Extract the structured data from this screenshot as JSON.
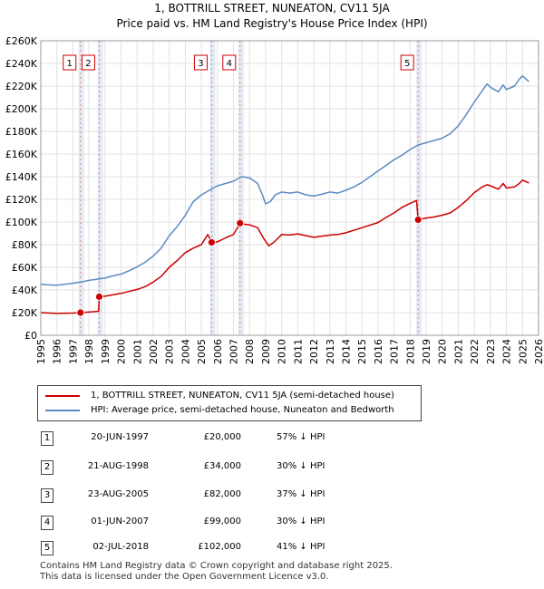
{
  "chart_data": {
    "type": "line",
    "title": "1, BOTTRILL STREET, NUNEATON, CV11 5JA",
    "subtitle": "Price paid vs. HM Land Registry's House Price Index (HPI)",
    "xlim": [
      1995,
      2026
    ],
    "ylim": [
      0,
      260000
    ],
    "x_ticks": [
      1995,
      1996,
      1997,
      1998,
      1999,
      2000,
      2001,
      2002,
      2003,
      2004,
      2005,
      2006,
      2007,
      2008,
      2009,
      2010,
      2011,
      2012,
      2013,
      2014,
      2015,
      2016,
      2017,
      2018,
      2019,
      2020,
      2021,
      2022,
      2023,
      2024,
      2025,
      2026
    ],
    "y_ticks": [
      0,
      20000,
      40000,
      60000,
      80000,
      100000,
      120000,
      140000,
      160000,
      180000,
      200000,
      220000,
      240000,
      260000
    ],
    "y_tick_labels": [
      "£0",
      "£20K",
      "£40K",
      "£60K",
      "£80K",
      "£100K",
      "£120K",
      "£140K",
      "£160K",
      "£180K",
      "£200K",
      "£220K",
      "£240K",
      "£260K"
    ],
    "grid": true,
    "series": [
      {
        "name": "1, BOTTRILL STREET, NUNEATON, CV11 5JA (semi-detached house)",
        "color": "#cc0000",
        "points": [
          [
            1995.0,
            20000
          ],
          [
            1996.0,
            19300
          ],
          [
            1997.0,
            19600
          ],
          [
            1997.47,
            20000
          ],
          [
            1998.0,
            20500
          ],
          [
            1998.6,
            21200
          ],
          [
            1998.64,
            34000
          ],
          [
            1999.0,
            34500
          ],
          [
            2000.0,
            37000
          ],
          [
            2001.0,
            40500
          ],
          [
            2001.5,
            43000
          ],
          [
            2002.0,
            47000
          ],
          [
            2002.5,
            52000
          ],
          [
            2003.0,
            60000
          ],
          [
            2003.5,
            66000
          ],
          [
            2004.0,
            73000
          ],
          [
            2004.5,
            77000
          ],
          [
            2005.0,
            80000
          ],
          [
            2005.4,
            89000
          ],
          [
            2005.64,
            82000
          ],
          [
            2006.0,
            82500
          ],
          [
            2006.5,
            86000
          ],
          [
            2007.0,
            89000
          ],
          [
            2007.41,
            99000
          ],
          [
            2007.7,
            98000
          ],
          [
            2008.0,
            97500
          ],
          [
            2008.5,
            95000
          ],
          [
            2008.9,
            85000
          ],
          [
            2009.2,
            79000
          ],
          [
            2009.5,
            82000
          ],
          [
            2009.8,
            86000
          ],
          [
            2010.0,
            89000
          ],
          [
            2010.5,
            88500
          ],
          [
            2011.0,
            89500
          ],
          [
            2011.5,
            88000
          ],
          [
            2012.0,
            86500
          ],
          [
            2012.5,
            87500
          ],
          [
            2013.0,
            88500
          ],
          [
            2013.5,
            89000
          ],
          [
            2014.0,
            90500
          ],
          [
            2015.0,
            95000
          ],
          [
            2016.0,
            99500
          ],
          [
            2016.5,
            104000
          ],
          [
            2017.0,
            108000
          ],
          [
            2017.5,
            113000
          ],
          [
            2018.0,
            116500
          ],
          [
            2018.4,
            119000
          ],
          [
            2018.5,
            102000
          ],
          [
            2019.0,
            103500
          ],
          [
            2019.5,
            104500
          ],
          [
            2020.0,
            106000
          ],
          [
            2020.5,
            108000
          ],
          [
            2021.0,
            113000
          ],
          [
            2021.5,
            119000
          ],
          [
            2022.0,
            126000
          ],
          [
            2022.5,
            131000
          ],
          [
            2022.8,
            133000
          ],
          [
            2023.0,
            132000
          ],
          [
            2023.5,
            129000
          ],
          [
            2023.8,
            134000
          ],
          [
            2024.0,
            130000
          ],
          [
            2024.5,
            131000
          ],
          [
            2024.8,
            134000
          ],
          [
            2025.0,
            137000
          ],
          [
            2025.4,
            134500
          ]
        ]
      },
      {
        "name": "HPI: Average price, semi-detached house, Nuneaton and Bedworth",
        "color": "#5b8bc4",
        "points": [
          [
            1995.0,
            45000
          ],
          [
            1995.5,
            44500
          ],
          [
            1996.0,
            44200
          ],
          [
            1996.5,
            45000
          ],
          [
            1997.0,
            46000
          ],
          [
            1997.5,
            47000
          ],
          [
            1998.0,
            48500
          ],
          [
            1998.5,
            49500
          ],
          [
            1999.0,
            50500
          ],
          [
            1999.5,
            52500
          ],
          [
            2000.0,
            54000
          ],
          [
            2000.5,
            57000
          ],
          [
            2001.0,
            60500
          ],
          [
            2001.5,
            64500
          ],
          [
            2002.0,
            70000
          ],
          [
            2002.5,
            77000
          ],
          [
            2003.0,
            88000
          ],
          [
            2003.5,
            96000
          ],
          [
            2004.0,
            106000
          ],
          [
            2004.5,
            118000
          ],
          [
            2005.0,
            124000
          ],
          [
            2005.5,
            128000
          ],
          [
            2006.0,
            132000
          ],
          [
            2006.5,
            134000
          ],
          [
            2007.0,
            136000
          ],
          [
            2007.5,
            140000
          ],
          [
            2008.0,
            139000
          ],
          [
            2008.5,
            134000
          ],
          [
            2008.8,
            124000
          ],
          [
            2009.0,
            116000
          ],
          [
            2009.3,
            118000
          ],
          [
            2009.6,
            124000
          ],
          [
            2010.0,
            126500
          ],
          [
            2010.5,
            125500
          ],
          [
            2011.0,
            126500
          ],
          [
            2011.5,
            124000
          ],
          [
            2012.0,
            123000
          ],
          [
            2012.5,
            124500
          ],
          [
            2013.0,
            126500
          ],
          [
            2013.5,
            125500
          ],
          [
            2014.0,
            128000
          ],
          [
            2014.5,
            131000
          ],
          [
            2015.0,
            135000
          ],
          [
            2015.5,
            140000
          ],
          [
            2016.0,
            145000
          ],
          [
            2016.5,
            150000
          ],
          [
            2017.0,
            155000
          ],
          [
            2017.5,
            159000
          ],
          [
            2018.0,
            164000
          ],
          [
            2018.5,
            168000
          ],
          [
            2019.0,
            170000
          ],
          [
            2019.5,
            172000
          ],
          [
            2020.0,
            174000
          ],
          [
            2020.5,
            178000
          ],
          [
            2021.0,
            185000
          ],
          [
            2021.5,
            195000
          ],
          [
            2022.0,
            206000
          ],
          [
            2022.5,
            216000
          ],
          [
            2022.8,
            222000
          ],
          [
            2023.0,
            219000
          ],
          [
            2023.5,
            215000
          ],
          [
            2023.8,
            221000
          ],
          [
            2024.0,
            217000
          ],
          [
            2024.5,
            220000
          ],
          [
            2024.8,
            226000
          ],
          [
            2025.0,
            229000
          ],
          [
            2025.4,
            224000
          ]
        ]
      }
    ],
    "transactions": [
      {
        "id": "1",
        "date": "20-JUN-1997",
        "x": 1997.47,
        "price": 20000,
        "price_label": "£20,000",
        "hpi": "57% ↓ HPI"
      },
      {
        "id": "2",
        "date": "21-AUG-1998",
        "x": 1998.64,
        "price": 34000,
        "price_label": "£34,000",
        "hpi": "30% ↓ HPI"
      },
      {
        "id": "3",
        "date": "23-AUG-2005",
        "x": 2005.64,
        "price": 82000,
        "price_label": "£82,000",
        "hpi": "37% ↓ HPI"
      },
      {
        "id": "4",
        "date": "01-JUN-2007",
        "x": 2007.41,
        "price": 99000,
        "price_label": "£99,000",
        "hpi": "30% ↓ HPI"
      },
      {
        "id": "5",
        "date": "02-JUL-2018",
        "x": 2018.5,
        "price": 102000,
        "price_label": "£102,000",
        "hpi": "41% ↓ HPI"
      }
    ]
  },
  "legend": {
    "property_label": "1, BOTTRILL STREET, NUNEATON, CV11 5JA (semi-detached house)",
    "hpi_label": "HPI: Average price, semi-detached house, Nuneaton and Bedworth",
    "property_color": "#cc0000",
    "hpi_color": "#5b8bc4"
  },
  "footer": {
    "line1": "Contains HM Land Registry data © Crown copyright and database right 2025.",
    "line2": "This data is licensed under the Open Government Licence v3.0."
  }
}
